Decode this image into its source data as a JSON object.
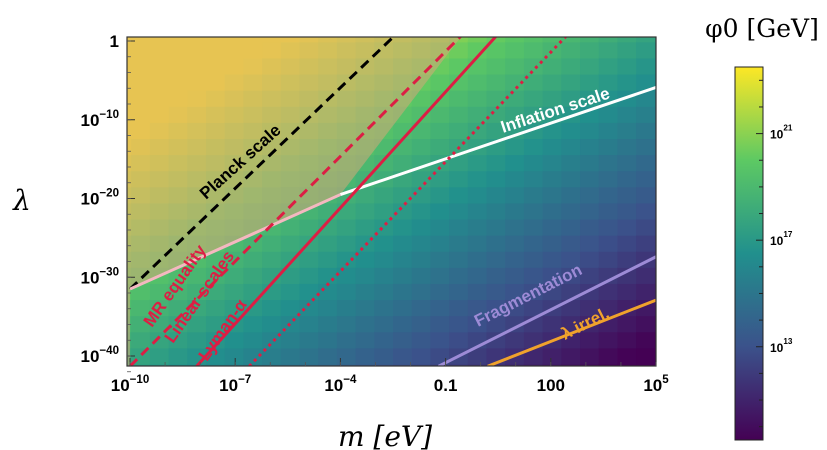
{
  "chart_data": {
    "type": "heatmap",
    "xlabel": "m [eV]",
    "ylabel": "λ",
    "x_scale": "log",
    "y_scale": "log",
    "xlim_log10": [
      -10,
      5
    ],
    "ylim_log10": [
      -42,
      1
    ],
    "x_ticks": [
      {
        "label": "10",
        "sup": "−10",
        "value_log10": -10
      },
      {
        "label": "10",
        "sup": "−7",
        "value_log10": -7
      },
      {
        "label": "10",
        "sup": "−4",
        "value_log10": -4
      },
      {
        "label": "0.1",
        "sup": "",
        "value_log10": -1
      },
      {
        "label": "100",
        "sup": "",
        "value_log10": 2
      },
      {
        "label": "10",
        "sup": "5",
        "value_log10": 5
      }
    ],
    "y_ticks": [
      {
        "label": "1",
        "sup": "",
        "value_log10": 0
      },
      {
        "label": "10",
        "sup": "−10",
        "value_log10": -10
      },
      {
        "label": "10",
        "sup": "−20",
        "value_log10": -20
      },
      {
        "label": "10",
        "sup": "−30",
        "value_log10": -30
      },
      {
        "label": "10",
        "sup": "−40",
        "value_log10": -40
      }
    ],
    "colorbar": {
      "title": "φ0 [GeV]",
      "scale": "log",
      "range_log10": [
        9.5,
        23.5
      ],
      "colormap": [
        "#440154",
        "#3b528b",
        "#21908d",
        "#5dc963",
        "#fde725"
      ],
      "ticks": [
        {
          "label": "10",
          "sup": "21",
          "value_log10": 21
        },
        {
          "label": "10",
          "sup": "17",
          "value_log10": 17
        },
        {
          "label": "10",
          "sup": "13",
          "value_log10": 13
        }
      ]
    },
    "series": [
      {
        "name": "Planck scale",
        "color": "#000000",
        "dash": "dashed",
        "points_log10": [
          [
            -10,
            -31.5
          ],
          [
            -2.4,
            0.9
          ]
        ]
      },
      {
        "name": "Inflation scale",
        "color": "#ffffff",
        "dash": "solid",
        "points_log10": [
          [
            -4,
            -19.5
          ],
          [
            5,
            -5.9
          ]
        ]
      },
      {
        "name": "",
        "color": "#f4b8c0",
        "dash": "solid",
        "points_log10": [
          [
            -10,
            -31.5
          ],
          [
            -4,
            -19.5
          ]
        ]
      },
      {
        "name": "MR equality",
        "color": "#dc1e44",
        "dash": "dashed",
        "points_log10": [
          [
            -10,
            -41.3
          ],
          [
            -0.5,
            0.9
          ]
        ]
      },
      {
        "name": "Linear scales",
        "color": "#dc1e44",
        "dash": "solid",
        "points_log10": [
          [
            -8.1,
            -41.3
          ],
          [
            0.5,
            0.9
          ]
        ]
      },
      {
        "name": "Lyman-α",
        "color": "#dc1e44",
        "dash": "dotted",
        "points_log10": [
          [
            -6.6,
            -41.3
          ],
          [
            2.5,
            0.9
          ]
        ]
      },
      {
        "name": "Fragmentation",
        "color": "#9d8bd6",
        "dash": "solid",
        "points_log10": [
          [
            -1.2,
            -41.3
          ],
          [
            5,
            -27.4
          ]
        ]
      },
      {
        "name": "λ irrel.",
        "color": "#f0a22c",
        "dash": "solid",
        "points_log10": [
          [
            0.2,
            -41.3
          ],
          [
            5,
            -32.9
          ]
        ]
      }
    ],
    "annotations": [
      {
        "text": "Planck scale",
        "color": "#000000"
      },
      {
        "text": "Inflation scale",
        "color": "#ffffff"
      },
      {
        "text": "MR equality",
        "color": "#dc1e44"
      },
      {
        "text": "Linear scales",
        "color": "#dc1e44"
      },
      {
        "text": "Lyman-α",
        "color": "#dc1e44"
      },
      {
        "text": "Fragmentation",
        "color": "#9d8bd6"
      },
      {
        "text": "λ irrel.",
        "color": "#f0a22c"
      }
    ],
    "excluded_region_tint": "#d6a878",
    "grid": false
  }
}
